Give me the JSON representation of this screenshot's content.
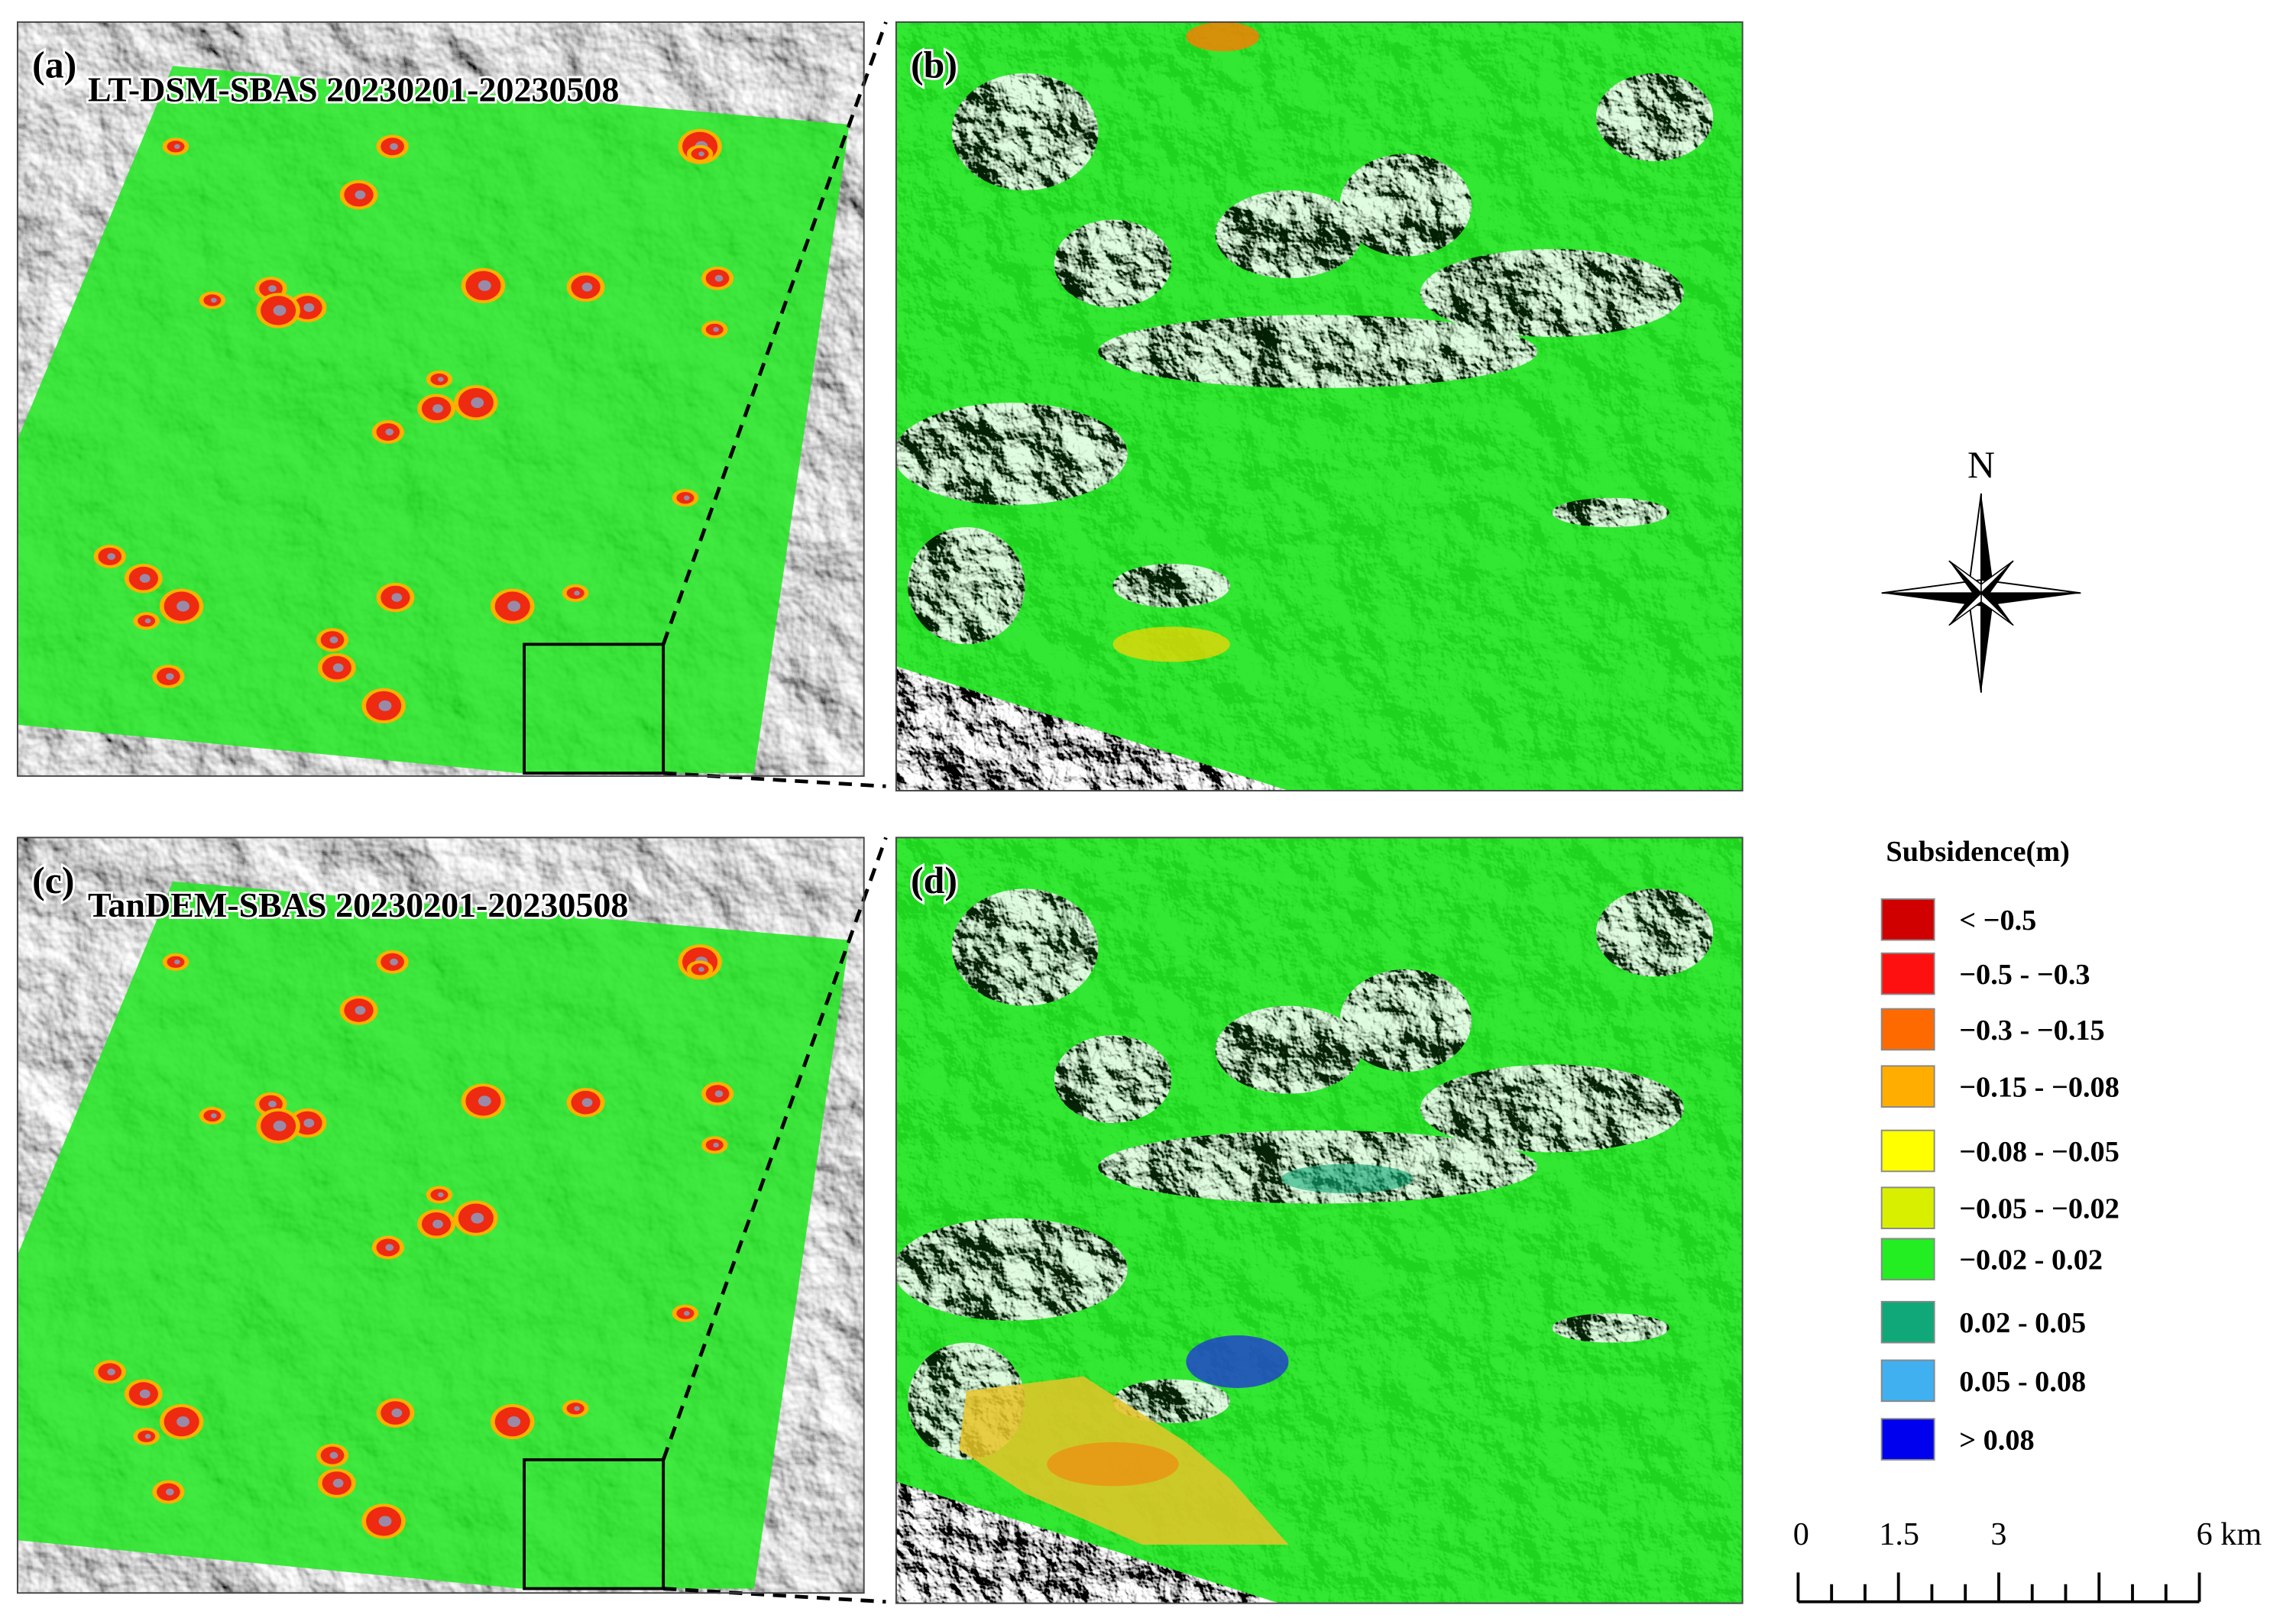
{
  "panels": [
    {
      "label": "(a)",
      "title": "LT-DSM-SBAS 20230201-20230508"
    },
    {
      "label": "(b)"
    },
    {
      "label": "(c)",
      "title": "TanDEM-SBAS 20230201-20230508"
    },
    {
      "label": "(d)"
    }
  ],
  "north_arrow": {
    "label": "N"
  },
  "legend": {
    "title": "Subsidence(m)",
    "items": [
      {
        "label": "< −0.5",
        "color": "#d00000"
      },
      {
        "label": "−0.5 - −0.3",
        "color": "#ff1010"
      },
      {
        "label": "−0.3 - −0.15",
        "color": "#ff6a00"
      },
      {
        "label": "−0.15 - −0.08",
        "color": "#ffae00"
      },
      {
        "label": "−0.08 - −0.05",
        "color": "#ffff00"
      },
      {
        "label": "−0.05 - −0.02",
        "color": "#d8f000"
      },
      {
        "label": "−0.02 - 0.02",
        "color": "#22ee22"
      },
      {
        "label": "0.02 - 0.05",
        "color": "#10a878"
      },
      {
        "label": "0.05 - 0.08",
        "color": "#40b0f0"
      },
      {
        "label": "> 0.08",
        "color": "#0000ee"
      }
    ]
  },
  "scale_bar": {
    "labels": [
      "0",
      "1.5",
      "3",
      "6 km"
    ]
  }
}
